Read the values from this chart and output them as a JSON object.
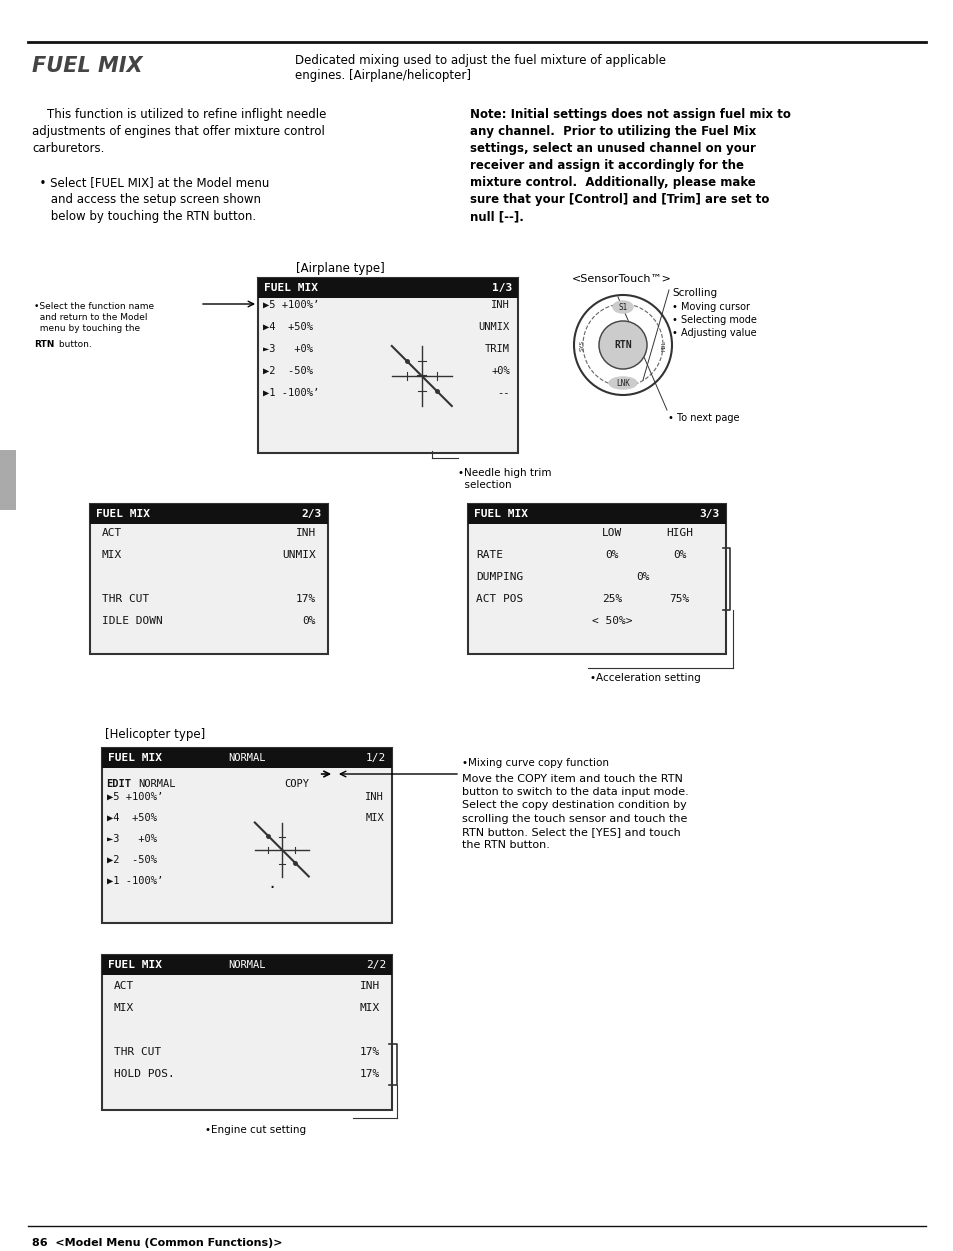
{
  "page_title": "FUEL MIX",
  "title_desc": "Dedicated mixing used to adjust the fuel mixture of applicable\nengines. [Airplane/helicopter]",
  "page_footer": "86  <Model Menu (Common Functions)>",
  "bg_color": "#ffffff",
  "text_color": "#000000",
  "screen_bg": "#f5f5f5",
  "screen_header_bg": "#111111",
  "screen_border": "#333333",
  "lcd_text": "#111111"
}
